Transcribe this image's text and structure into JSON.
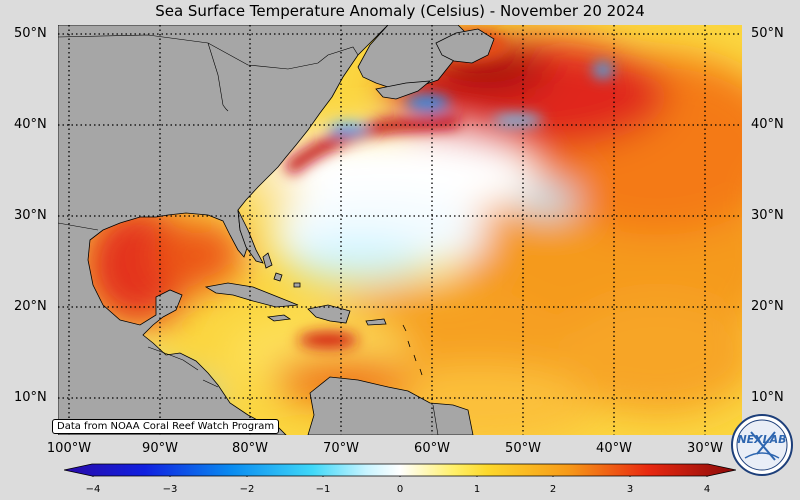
{
  "title": "Sea Surface Temperature Anomaly (Celsius) - November 20 2024",
  "credit": "Data from NOAA Coral Reef Watch Program",
  "logo_text": "NEXLAB",
  "lat_labels": [
    "50°N",
    "40°N",
    "30°N",
    "20°N",
    "10°N"
  ],
  "lon_labels": [
    "100°W",
    "90°W",
    "80°W",
    "70°W",
    "60°W",
    "50°W",
    "40°W",
    "30°W"
  ],
  "colorbar_ticks": [
    "−4",
    "−3",
    "−2",
    "−1",
    "0",
    "1",
    "2",
    "3",
    "4"
  ],
  "colorbar_range": [
    -4,
    4
  ],
  "colors": {
    "land": "#a6a6a6",
    "background": "#dcdcdc"
  }
}
